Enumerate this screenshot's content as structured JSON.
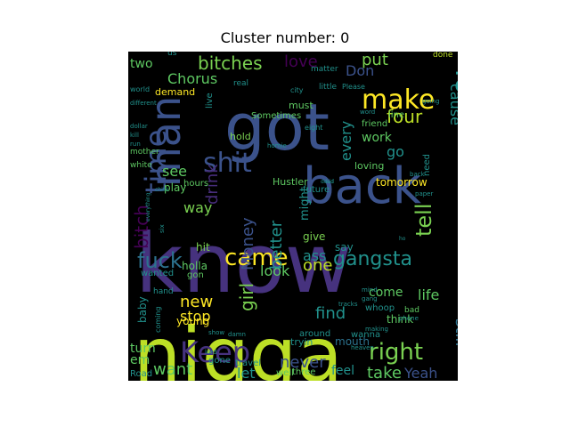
{
  "chart_data": {
    "type": "wordcloud",
    "title": "Cluster number: 0",
    "words": [
      {
        "text": "know",
        "color": "#46327e"
      },
      {
        "text": "nigga",
        "color": "#bddf26"
      },
      {
        "text": "got",
        "color": "#3b528b"
      },
      {
        "text": "back",
        "color": "#3b528b"
      },
      {
        "text": "man",
        "color": "#3b528b"
      },
      {
        "text": "make",
        "color": "#fde725"
      },
      {
        "text": "time",
        "color": "#3b528b"
      },
      {
        "text": "shit",
        "color": "#3b528b"
      },
      {
        "text": "Yo",
        "color": "#21918c"
      },
      {
        "text": "Keep",
        "color": "#46327e"
      },
      {
        "text": "right",
        "color": "#7ad151"
      },
      {
        "text": "came",
        "color": "#fde725"
      },
      {
        "text": "fuck",
        "color": "#2c728e"
      },
      {
        "text": "gangsta",
        "color": "#21918c"
      },
      {
        "text": "tell",
        "color": "#7ad151"
      },
      {
        "text": "bitches",
        "color": "#7ad151"
      },
      {
        "text": "love",
        "color": "#440154"
      },
      {
        "text": "put",
        "color": "#7ad151"
      },
      {
        "text": "bitch",
        "color": "#440154"
      },
      {
        "text": "one",
        "color": "#bddf26"
      },
      {
        "text": "girl",
        "color": "#7ad151"
      },
      {
        "text": "new",
        "color": "#fde725"
      },
      {
        "text": "stop",
        "color": "#fde725"
      },
      {
        "text": "take",
        "color": "#5ec962"
      },
      {
        "text": "want",
        "color": "#5ec962"
      },
      {
        "text": "never",
        "color": "#3b528b"
      },
      {
        "text": "Yeah",
        "color": "#3b528b"
      },
      {
        "text": "four",
        "color": "#bddf26"
      },
      {
        "text": "Don",
        "color": "#3b528b"
      },
      {
        "text": "see",
        "color": "#5ec962"
      },
      {
        "text": "drink",
        "color": "#472d7b"
      },
      {
        "text": "Money",
        "color": "#3b528b"
      },
      {
        "text": "ass",
        "color": "#21918c"
      },
      {
        "text": "still",
        "color": "#2c728e"
      },
      {
        "text": "life",
        "color": "#5ec962"
      },
      {
        "text": "find",
        "color": "#21918c"
      },
      {
        "text": "look",
        "color": "#5ec962"
      },
      {
        "text": "better",
        "color": "#21918c"
      },
      {
        "text": "way",
        "color": "#7ad151"
      },
      {
        "text": "Chorus",
        "color": "#5ec962"
      },
      {
        "text": "two",
        "color": "#5ec962"
      },
      {
        "text": "tomorrow",
        "color": "#fde725"
      },
      {
        "text": "work",
        "color": "#5ec962"
      },
      {
        "text": "every",
        "color": "#21918c"
      },
      {
        "text": "cause",
        "color": "#21918c"
      },
      {
        "text": "go",
        "color": "#21918c"
      },
      {
        "text": "let",
        "color": "#21918c"
      },
      {
        "text": "feel",
        "color": "#21918c"
      },
      {
        "text": "come",
        "color": "#5ec962"
      },
      {
        "text": "em",
        "color": "#5ec962"
      },
      {
        "text": "turn",
        "color": "#5ec962"
      },
      {
        "text": "holla",
        "color": "#5ec962"
      },
      {
        "text": "hit",
        "color": "#7ad151"
      },
      {
        "text": "give",
        "color": "#7ad151"
      },
      {
        "text": "say",
        "color": "#21918c"
      },
      {
        "text": "gon",
        "color": "#5ec962"
      },
      {
        "text": "young",
        "color": "#fde725"
      },
      {
        "text": "hours",
        "color": "#5ec962"
      },
      {
        "text": "play",
        "color": "#5ec962"
      },
      {
        "text": "demand",
        "color": "#fde725"
      },
      {
        "text": "hold",
        "color": "#7ad151"
      },
      {
        "text": "must",
        "color": "#5ec962"
      },
      {
        "text": "might",
        "color": "#21918c"
      },
      {
        "text": "friend",
        "color": "#5ec962"
      },
      {
        "text": "loving",
        "color": "#5ec962"
      },
      {
        "text": "future",
        "color": "#21918c"
      },
      {
        "text": "Hustler",
        "color": "#5ec962"
      },
      {
        "text": "Sometimes",
        "color": "#5ec962"
      },
      {
        "text": "line",
        "color": "#5ec962"
      },
      {
        "text": "think",
        "color": "#5ec962"
      },
      {
        "text": "wanna",
        "color": "#21918c"
      },
      {
        "text": "whoop",
        "color": "#21918c"
      },
      {
        "text": "mouth",
        "color": "#2c728e"
      },
      {
        "text": "tryin",
        "color": "#21918c"
      },
      {
        "text": "travel",
        "color": "#21918c"
      },
      {
        "text": "well",
        "color": "#5ec962"
      },
      {
        "text": "three",
        "color": "#5ec962"
      },
      {
        "text": "around",
        "color": "#21918c"
      },
      {
        "text": "gone",
        "color": "#21918c"
      },
      {
        "text": "Road",
        "color": "#21918c"
      },
      {
        "text": "wanted",
        "color": "#21918c"
      },
      {
        "text": "hand",
        "color": "#21918c"
      },
      {
        "text": "baby",
        "color": "#21918c"
      },
      {
        "text": "bad",
        "color": "#5ec962"
      },
      {
        "text": "need",
        "color": "#21918c"
      },
      {
        "text": "live",
        "color": "#21918c"
      },
      {
        "text": "real",
        "color": "#21918c"
      },
      {
        "text": "little",
        "color": "#21918c"
      },
      {
        "text": "matter",
        "color": "#21918c"
      },
      {
        "text": "city",
        "color": "#21918c"
      },
      {
        "text": "Please",
        "color": "#21918c"
      },
      {
        "text": "done",
        "color": "#bddf26"
      },
      {
        "text": "us",
        "color": "#21918c"
      },
      {
        "text": "mother",
        "color": "#5ec962"
      },
      {
        "text": "white",
        "color": "#5ec962"
      },
      {
        "text": "world",
        "color": "#21918c"
      },
      {
        "text": "different",
        "color": "#21918c"
      },
      {
        "text": "going",
        "color": "#21918c"
      },
      {
        "text": "eight",
        "color": "#21918c"
      },
      {
        "text": "word",
        "color": "#21918c"
      },
      {
        "text": "paper",
        "color": "#21918c"
      },
      {
        "text": "phone",
        "color": "#21918c"
      },
      {
        "text": "mind",
        "color": "#21918c"
      },
      {
        "text": "gang",
        "color": "#21918c"
      },
      {
        "text": "coming",
        "color": "#21918c"
      },
      {
        "text": "show",
        "color": "#21918c"
      },
      {
        "text": "damn",
        "color": "#21918c"
      },
      {
        "text": "heaven",
        "color": "#21918c"
      },
      {
        "text": "making",
        "color": "#21918c"
      },
      {
        "text": "dollar",
        "color": "#21918c"
      },
      {
        "text": "kill",
        "color": "#21918c"
      },
      {
        "text": "run",
        "color": "#21918c"
      },
      {
        "text": "six",
        "color": "#21918c"
      },
      {
        "text": "back",
        "color": "#21918c"
      },
      {
        "text": "lord",
        "color": "#21918c"
      },
      {
        "text": "tracks",
        "color": "#21918c"
      },
      {
        "text": "chick",
        "color": "#21918c"
      },
      {
        "text": "everything",
        "color": "#21918c"
      },
      {
        "text": "ho",
        "color": "#21918c"
      },
      {
        "text": "kid",
        "color": "#21918c"
      },
      {
        "text": "homie",
        "color": "#21918c"
      },
      {
        "text": "dead",
        "color": "#21918c"
      }
    ]
  }
}
